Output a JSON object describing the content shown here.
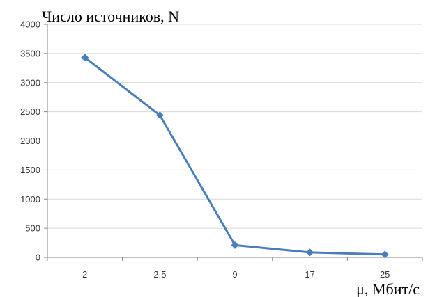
{
  "chart_data": {
    "type": "line",
    "title": "",
    "ylabel": "Число источников, N",
    "xlabel": "μ, Мбит/с",
    "categories": [
      "2",
      "2,5",
      "9",
      "17",
      "25"
    ],
    "series": [
      {
        "values": [
          3430,
          2440,
          210,
          85,
          50
        ]
      }
    ],
    "ylim": [
      0,
      4000
    ],
    "yticks": [
      0,
      500,
      1000,
      1500,
      2000,
      2500,
      3000,
      3500,
      4000
    ],
    "ytick_labels": [
      "0",
      "500",
      "1000",
      "1500",
      "2000",
      "2500",
      "3000",
      "3500",
      "4000"
    ],
    "grid": "horizontal",
    "legend": "none",
    "colors": {
      "series": "#4a7ebb",
      "grid": "#d9d9d9",
      "axis": "#868686"
    }
  }
}
